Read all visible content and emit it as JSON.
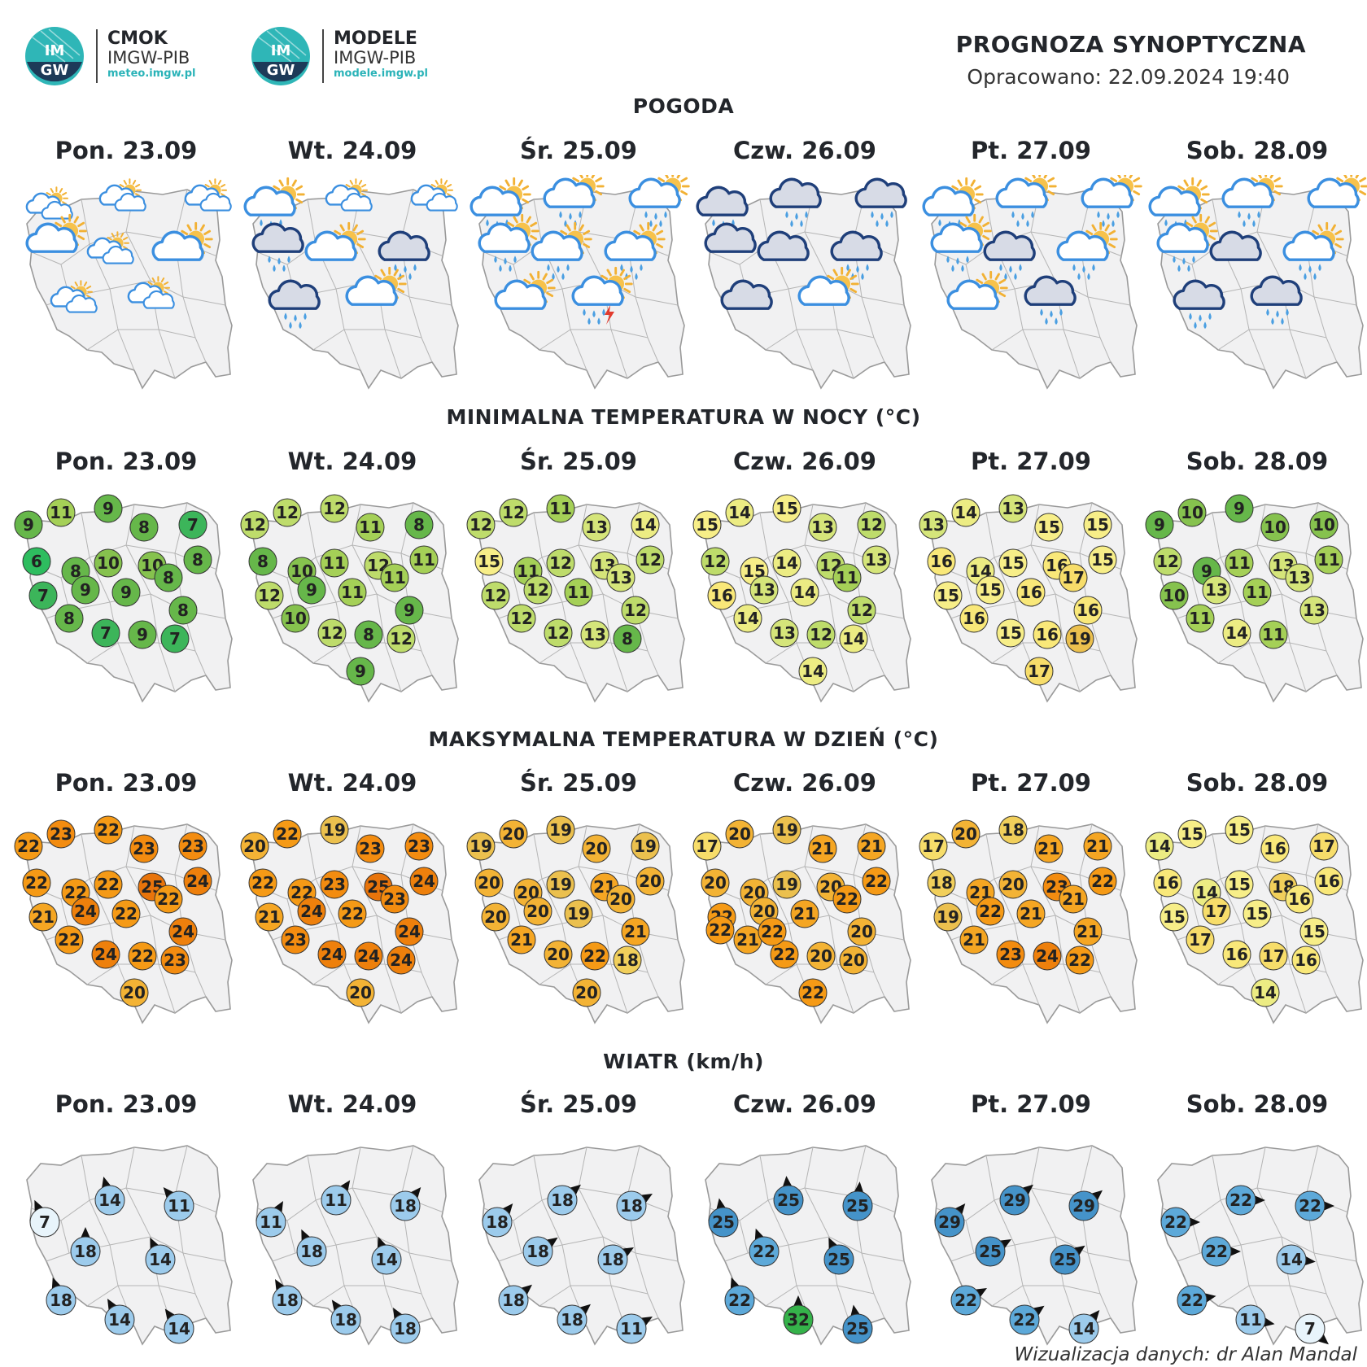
{
  "header": {
    "logo1": {
      "name": "CMOK",
      "sub": "IMGW-PIB",
      "url": "meteo.imgw.pl"
    },
    "logo2": {
      "name": "MODELE",
      "sub": "IMGW-PIB",
      "url": "modele.imgw.pl"
    },
    "emblem_text": "IMGW",
    "title": "PROGNOZA SYNOPTYCZNA",
    "issued": "Opracowano: 22.09.2024 19:40"
  },
  "days": [
    "Pon. 23.09",
    "Wt. 24.09",
    "Śr. 25.09",
    "Czw. 26.09",
    "Pt. 27.09",
    "Sob. 28.09"
  ],
  "sections": {
    "weather": "POGODA",
    "tmin": "MINIMALNA TEMPERATURA W NOCY (°C)",
    "tmax": "MAKSYMALNA TEMPERATURA W DZIEŃ (°C)",
    "wind": "WIATR (km/h)"
  },
  "weather_icons": [
    [
      "sun-cloud-small",
      "sun-cloud-small",
      "sun-cloud-small",
      "sun-cloud",
      "sun-cloud-small",
      "sun-cloud",
      "sun-cloud-small",
      "sun-cloud-small"
    ],
    [
      "sun-cloud-rain",
      "sun-cloud-small",
      "sun-cloud-small",
      "dark-cloud-rain",
      "sun-cloud",
      "dark-cloud-rain",
      "dark-cloud-rain",
      "sun-cloud"
    ],
    [
      "sun-cloud-rain",
      "sun-cloud-rain",
      "sun-cloud-rain",
      "sun-cloud-rain",
      "sun-cloud-rain",
      "sun-cloud-rain",
      "sun-cloud",
      "sun-cloud-storm"
    ],
    [
      "dark-cloud-rain",
      "dark-cloud-rain",
      "dark-cloud-rain",
      "dark-cloud",
      "dark-cloud",
      "dark-cloud-rain",
      "dark-cloud",
      "sun-cloud"
    ],
    [
      "sun-cloud-rain",
      "sun-cloud-rain",
      "sun-cloud-rain",
      "sun-cloud-rain",
      "dark-cloud-rain",
      "sun-cloud-rain",
      "sun-cloud",
      "dark-cloud-rain"
    ],
    [
      "sun-cloud-rain",
      "sun-cloud-rain",
      "sun-cloud",
      "sun-cloud-rain",
      "dark-cloud",
      "sun-cloud-rain",
      "dark-cloud-rain",
      "dark-cloud-rain"
    ]
  ],
  "tmin": [
    [
      9,
      11,
      9,
      8,
      7,
      8,
      6,
      8,
      10,
      10,
      7,
      9,
      9,
      8,
      8,
      8,
      7,
      9,
      7
    ],
    [
      12,
      12,
      12,
      11,
      8,
      11,
      8,
      10,
      11,
      12,
      12,
      9,
      11,
      11,
      9,
      10,
      12,
      8,
      12,
      9
    ],
    [
      12,
      12,
      11,
      13,
      14,
      12,
      15,
      11,
      12,
      13,
      12,
      12,
      11,
      13,
      12,
      12,
      12,
      13,
      8
    ],
    [
      15,
      14,
      15,
      13,
      12,
      13,
      12,
      15,
      14,
      12,
      16,
      13,
      14,
      11,
      12,
      14,
      13,
      12,
      14,
      14
    ],
    [
      13,
      14,
      13,
      15,
      15,
      15,
      16,
      14,
      15,
      16,
      15,
      15,
      16,
      17,
      16,
      16,
      15,
      16,
      19,
      17
    ],
    [
      9,
      10,
      9,
      10,
      10,
      11,
      12,
      9,
      11,
      13,
      10,
      13,
      11,
      13,
      13,
      11,
      14,
      11
    ]
  ],
  "tmax": [
    [
      22,
      23,
      22,
      23,
      23,
      24,
      22,
      22,
      22,
      25,
      21,
      24,
      22,
      22,
      24,
      22,
      24,
      22,
      23,
      20
    ],
    [
      20,
      22,
      19,
      23,
      23,
      24,
      22,
      22,
      23,
      25,
      21,
      24,
      22,
      23,
      24,
      23,
      24,
      24,
      24,
      20
    ],
    [
      19,
      20,
      19,
      20,
      19,
      20,
      20,
      20,
      19,
      21,
      20,
      20,
      19,
      20,
      21,
      21,
      20,
      22,
      18,
      20
    ],
    [
      17,
      20,
      19,
      21,
      21,
      22,
      20,
      20,
      19,
      20,
      22,
      20,
      21,
      22,
      20,
      21,
      22,
      20,
      20,
      22,
      22,
      22
    ],
    [
      17,
      20,
      18,
      21,
      21,
      22,
      18,
      21,
      20,
      23,
      19,
      22,
      21,
      21,
      21,
      21,
      23,
      24,
      22
    ],
    [
      14,
      15,
      15,
      16,
      17,
      16,
      16,
      14,
      15,
      18,
      15,
      17,
      15,
      16,
      15,
      17,
      16,
      17,
      16,
      14
    ]
  ],
  "wind": [
    [
      7,
      14,
      11,
      18,
      14,
      18,
      14,
      14
    ],
    [
      11,
      11,
      18,
      18,
      14,
      18,
      18,
      18
    ],
    [
      18,
      18,
      18,
      18,
      18,
      18,
      18,
      11
    ],
    [
      25,
      25,
      25,
      22,
      25,
      22,
      32,
      25
    ],
    [
      29,
      29,
      29,
      25,
      25,
      22,
      22,
      14
    ],
    [
      22,
      22,
      22,
      22,
      14,
      22,
      11,
      7
    ]
  ],
  "credit": "Wizualizacja danych: dr Alan Mandal"
}
